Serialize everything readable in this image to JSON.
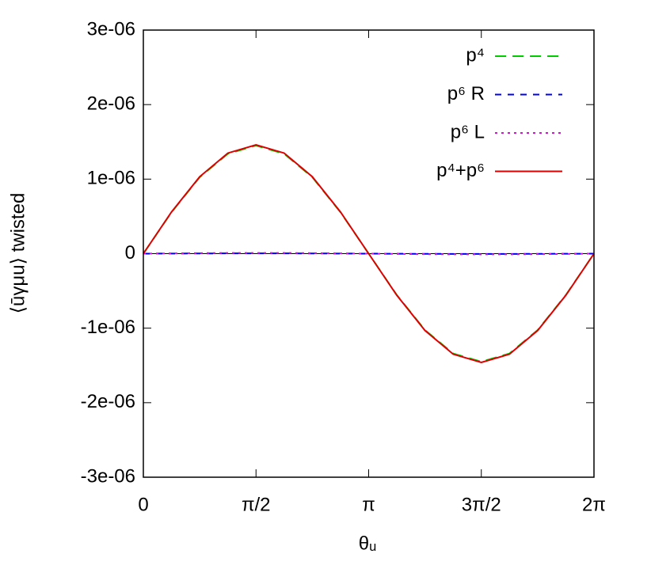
{
  "chart_data": {
    "type": "line",
    "xlabel": "θᵤ",
    "ylabel": "⟨ūγμu⟩ twisted",
    "xlim": [
      0,
      6.2832
    ],
    "ylim": [
      -3e-06,
      3e-06
    ],
    "xticks": [
      0,
      {
        "value": 1.5708,
        "label": "π/2"
      },
      {
        "value": 3.1416,
        "label": "π"
      },
      {
        "value": 4.7124,
        "label": "3π/2"
      },
      {
        "value": 6.2832,
        "label": "2π"
      }
    ],
    "yticks": [
      {
        "value": -3e-06,
        "label": "-3e-06"
      },
      {
        "value": -2e-06,
        "label": "-2e-06"
      },
      {
        "value": -1e-06,
        "label": "-1e-06"
      },
      0,
      {
        "value": 1e-06,
        "label": "1e-06"
      },
      {
        "value": 2e-06,
        "label": "2e-06"
      },
      {
        "value": 3e-06,
        "label": "3e-06"
      }
    ],
    "legend": "upper right",
    "x": [
      0,
      0.3927,
      0.7854,
      1.1781,
      1.5708,
      1.9635,
      2.3562,
      2.7489,
      3.1416,
      3.5343,
      3.927,
      4.3197,
      4.7124,
      5.1051,
      5.4978,
      5.8905,
      6.2832
    ],
    "series": [
      {
        "name": "p⁴",
        "color": "#00cc00",
        "dash": "14 8",
        "values": [
          0,
          5.55e-07,
          1.025e-06,
          1.34e-06,
          1.45e-06,
          1.34e-06,
          1.025e-06,
          5.55e-07,
          0,
          -5.55e-07,
          -1.025e-06,
          -1.34e-06,
          -1.45e-06,
          -1.34e-06,
          -1.025e-06,
          -5.55e-07,
          0
        ]
      },
      {
        "name": "p⁶ R",
        "color": "#0000ee",
        "dash": "8 8",
        "values": [
          0,
          1.5e-09,
          2.8e-09,
          3.7e-09,
          4e-09,
          3.7e-09,
          2.8e-09,
          1.5e-09,
          0,
          -1.5e-09,
          -2.8e-09,
          -3.7e-09,
          -4e-09,
          -3.7e-09,
          -2.8e-09,
          -1.5e-09,
          0
        ]
      },
      {
        "name": "p⁶ L",
        "color": "#ee00ee",
        "dash": "3 5",
        "values": [
          0,
          3.8e-09,
          7.1e-09,
          9.2e-09,
          1e-08,
          9.2e-09,
          7.1e-09,
          3.8e-09,
          0,
          -3.8e-09,
          -7.1e-09,
          -9.2e-09,
          -1e-08,
          -9.2e-09,
          -7.1e-09,
          -3.8e-09,
          0
        ]
      },
      {
        "name": "p⁴+p⁶",
        "color": "#dd0000",
        "dash": "none",
        "values": [
          0,
          5.59e-07,
          1.032e-06,
          1.349e-06,
          1.46e-06,
          1.349e-06,
          1.032e-06,
          5.59e-07,
          0,
          -5.59e-07,
          -1.032e-06,
          -1.349e-06,
          -1.46e-06,
          -1.349e-06,
          -1.032e-06,
          -5.59e-07,
          0
        ]
      }
    ]
  }
}
